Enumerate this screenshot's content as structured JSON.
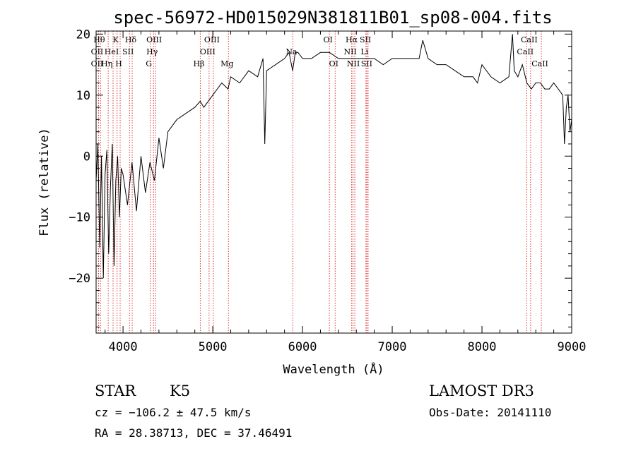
{
  "chart_data": {
    "type": "line",
    "title": "spec-56972-HD015029N381811B01_sp08-004.fits",
    "xlabel": "Wavelength (Å)",
    "ylabel": "Flux (relative)",
    "xlim": [
      3700,
      9000
    ],
    "ylim": [
      -29,
      20.5
    ],
    "x_ticks": [
      4000,
      5000,
      6000,
      7000,
      8000,
      9000
    ],
    "y_ticks": [
      -20,
      -10,
      0,
      10,
      20
    ],
    "series": [
      {
        "name": "flux",
        "x": [
          3700,
          3720,
          3740,
          3760,
          3780,
          3800,
          3820,
          3840,
          3860,
          3880,
          3900,
          3920,
          3940,
          3960,
          3980,
          4000,
          4050,
          4100,
          4150,
          4200,
          4250,
          4300,
          4350,
          4400,
          4450,
          4500,
          4600,
          4700,
          4800,
          4860,
          4900,
          5000,
          5100,
          5170,
          5200,
          5300,
          5400,
          5500,
          5560,
          5580,
          5600,
          5700,
          5800,
          5850,
          5890,
          5920,
          5950,
          6000,
          6100,
          6200,
          6300,
          6400,
          6500,
          6563,
          6600,
          6700,
          6800,
          6900,
          7000,
          7100,
          7200,
          7300,
          7340,
          7400,
          7500,
          7600,
          7700,
          7800,
          7900,
          7950,
          8000,
          8100,
          8200,
          8300,
          8340,
          8360,
          8400,
          8450,
          8500,
          8550,
          8600,
          8650,
          8700,
          8750,
          8800,
          8850,
          8900,
          8920,
          8940,
          8960,
          8980,
          9000
        ],
        "values": [
          -4,
          2,
          -15,
          0,
          -20,
          -3,
          1,
          -16,
          -5,
          2,
          -18,
          -4,
          0,
          -10,
          -2,
          -3,
          -8,
          -1,
          -9,
          0,
          -6,
          -1,
          -4,
          3,
          -2,
          4,
          6,
          7,
          8,
          9,
          8,
          10,
          12,
          11,
          13,
          12,
          14,
          13,
          16,
          2,
          14,
          15,
          16,
          17,
          14,
          17,
          17,
          16,
          16,
          17,
          17,
          16,
          16,
          16,
          16,
          16,
          16,
          15,
          16,
          16,
          16,
          16,
          19,
          16,
          15,
          15,
          14,
          13,
          13,
          12,
          15,
          13,
          12,
          13,
          20,
          14,
          13,
          15,
          12,
          11,
          12,
          12,
          11,
          11,
          12,
          11,
          10,
          2,
          8,
          10,
          4,
          6
        ]
      }
    ],
    "emission_lines": [
      {
        "label": "Hθ",
        "x": 3750,
        "row": 1
      },
      {
        "label": "OII",
        "x": 3727,
        "row": 2
      },
      {
        "label": "OII",
        "x": 3727,
        "row": 3
      },
      {
        "label": "K",
        "x": 3934,
        "row": 1
      },
      {
        "label": "HeI",
        "x": 3889,
        "row": 2
      },
      {
        "label": "Hη",
        "x": 3835,
        "row": 3
      },
      {
        "label": "Hδ",
        "x": 4102,
        "row": 1
      },
      {
        "label": "SII",
        "x": 4072,
        "row": 2
      },
      {
        "label": "H",
        "x": 3968,
        "row": 3
      },
      {
        "label": "OIII",
        "x": 4363,
        "row": 1
      },
      {
        "label": "Hγ",
        "x": 4340,
        "row": 2
      },
      {
        "label": "G",
        "x": 4304,
        "row": 3
      },
      {
        "label": "OIII",
        "x": 5007,
        "row": 1
      },
      {
        "label": "OIII",
        "x": 4959,
        "row": 2
      },
      {
        "label": "Hβ",
        "x": 4861,
        "row": 3
      },
      {
        "label": "Mg",
        "x": 5175,
        "row": 3
      },
      {
        "label": "Na",
        "x": 5893,
        "row": 2
      },
      {
        "label": "OI",
        "x": 6300,
        "row": 1
      },
      {
        "label": "OI",
        "x": 6364,
        "row": 3
      },
      {
        "label": "Hα",
        "x": 6563,
        "row": 1
      },
      {
        "label": "SII",
        "x": 6717,
        "row": 1
      },
      {
        "label": "NII",
        "x": 6548,
        "row": 2
      },
      {
        "label": "Li",
        "x": 6707,
        "row": 2
      },
      {
        "label": "NII",
        "x": 6583,
        "row": 3
      },
      {
        "label": "SII",
        "x": 6731,
        "row": 3
      },
      {
        "label": "CaII",
        "x": 8542,
        "row": 1
      },
      {
        "label": "CaII",
        "x": 8498,
        "row": 2
      },
      {
        "label": "CaII",
        "x": 8662,
        "row": 3
      }
    ]
  },
  "info": {
    "object_class": "STAR",
    "subclass": "K5",
    "survey": "LAMOST DR3",
    "redshift": "cz = −106.2 ± 47.5 km/s",
    "obs_date": "Obs-Date: 20141110",
    "coordinates": "RA =  28.38713, DEC =  37.46491"
  }
}
